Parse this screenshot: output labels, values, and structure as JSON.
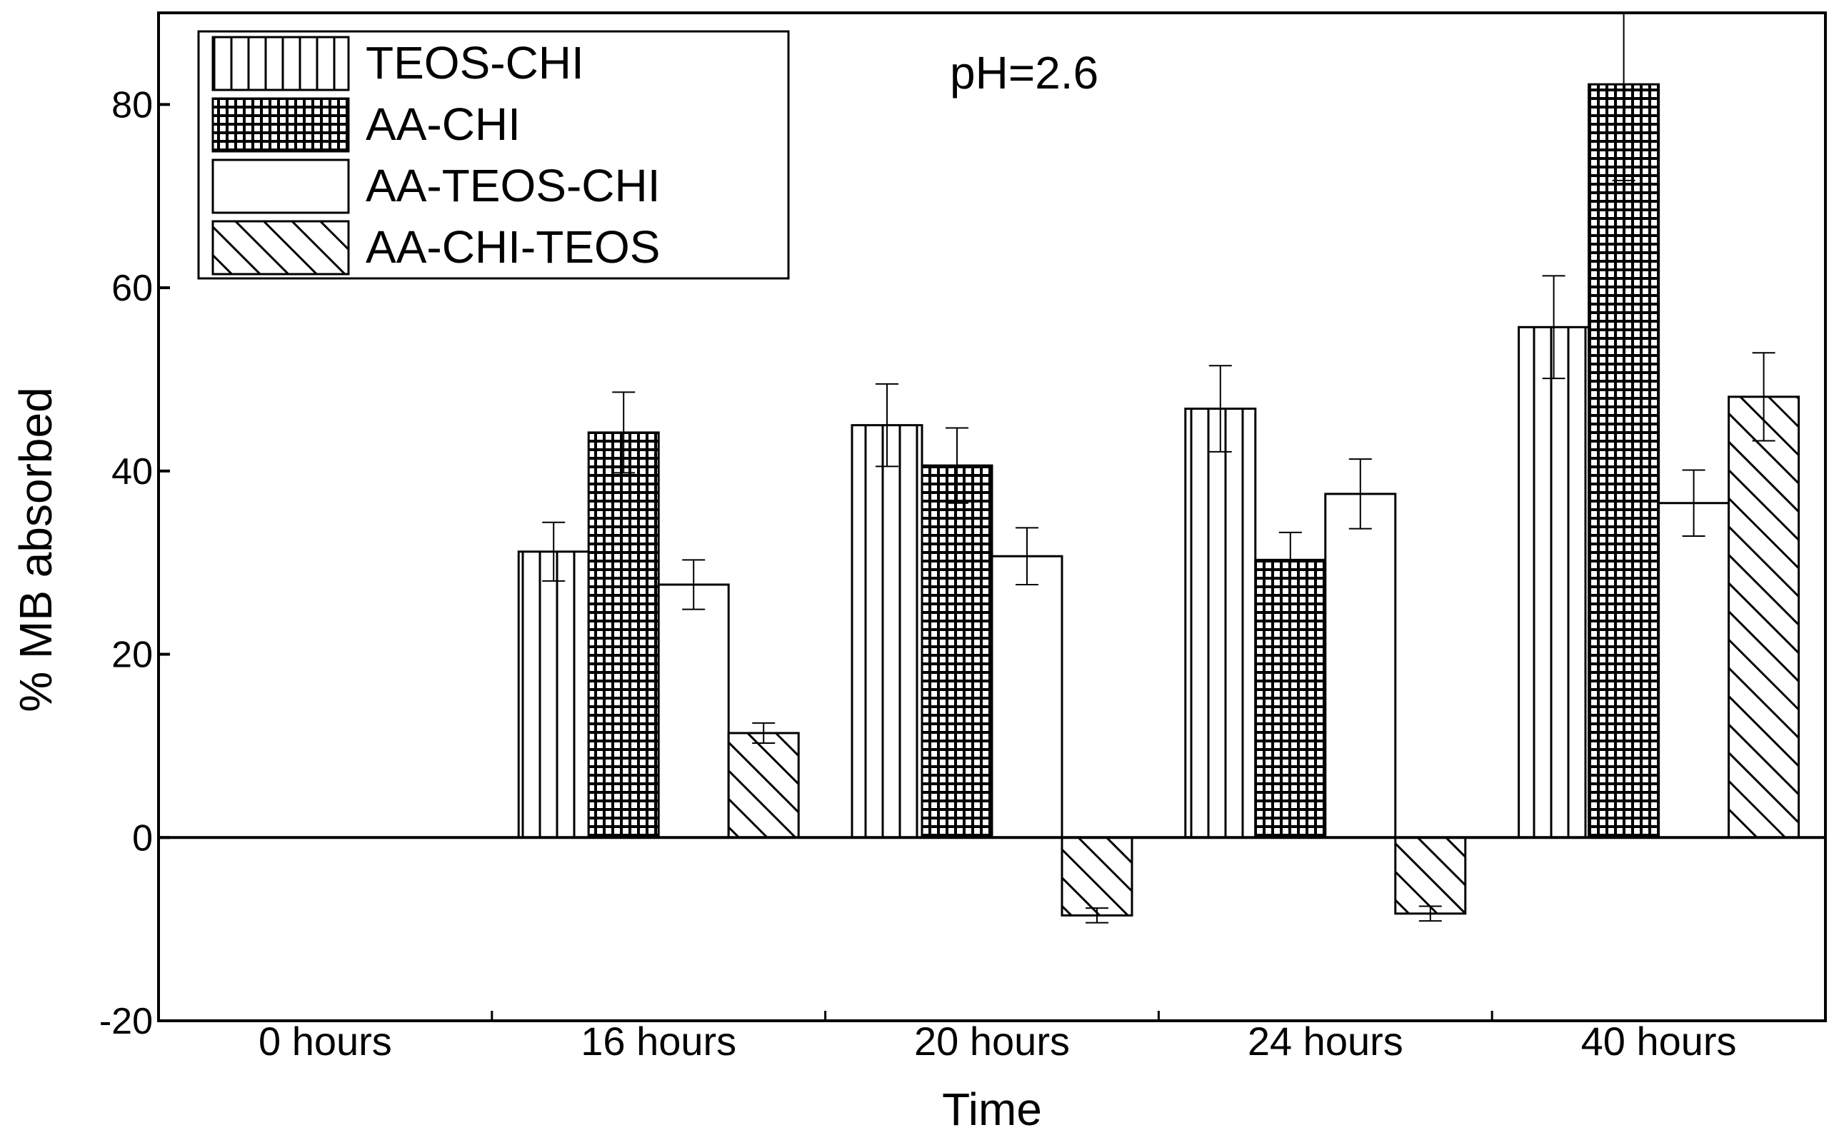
{
  "chart_data": {
    "type": "bar",
    "title": "",
    "annotation": "pH=2.6",
    "xlabel": "Time",
    "ylabel": "% MB absorbed",
    "ylim": [
      -20,
      90
    ],
    "yticks": [
      -20,
      0,
      20,
      40,
      60,
      80
    ],
    "grid": false,
    "legend_position": "top-left",
    "categories": [
      "0 hours",
      "16 hours",
      "20 hours",
      "24 hours",
      "40 hours"
    ],
    "series": [
      {
        "name": "TEOS-CHI",
        "pattern": "vertical-lines",
        "values": [
          0,
          31.2,
          45,
          46.8,
          55.7
        ],
        "errors": [
          0,
          3.2,
          4.5,
          4.7,
          5.6
        ]
      },
      {
        "name": "AA-CHI",
        "pattern": "crosshatch",
        "values": [
          0,
          44.2,
          40.6,
          30.3,
          82.2
        ],
        "errors": [
          0,
          4.4,
          4.1,
          3.0,
          10.5
        ]
      },
      {
        "name": "AA-TEOS-CHI",
        "pattern": "none",
        "values": [
          0,
          27.6,
          30.7,
          37.5,
          36.5
        ],
        "errors": [
          0,
          2.7,
          3.1,
          3.8,
          3.6
        ]
      },
      {
        "name": "AA-CHI-TEOS",
        "pattern": "diagonal-lines",
        "values": [
          0,
          11.4,
          -8.5,
          -8.3,
          48.1
        ],
        "errors": [
          0,
          1.1,
          0.8,
          0.8,
          4.8
        ]
      }
    ],
    "colors": {
      "ink": "#000000",
      "background": "#ffffff"
    }
  }
}
